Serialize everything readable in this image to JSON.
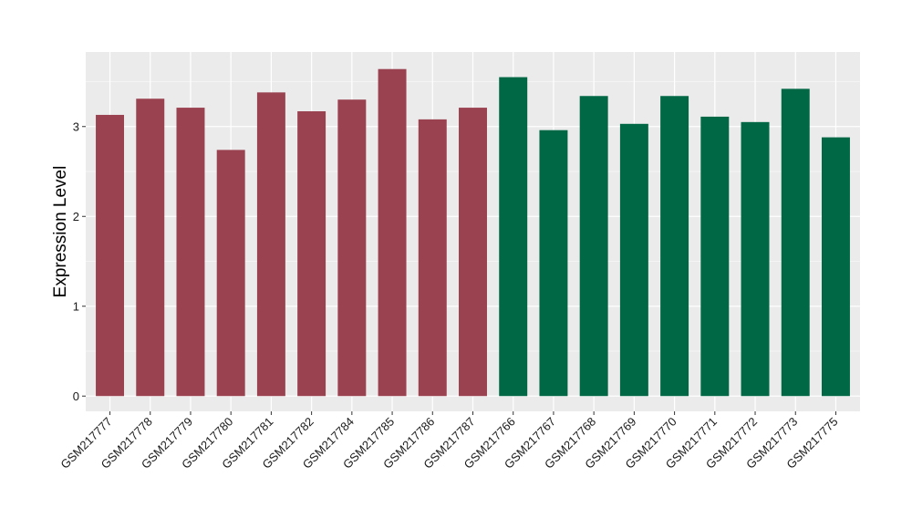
{
  "chart_data": {
    "type": "bar",
    "title": "",
    "xlabel": "",
    "ylabel": "Expression Level",
    "ylim": [
      -0.17,
      3.83
    ],
    "yticks": [
      0,
      1,
      2,
      3
    ],
    "grid": true,
    "legend": "none",
    "colors": {
      "group_a": "#9a4250",
      "group_b": "#006845",
      "panel_bg": "#ebebeb",
      "grid_major": "#ffffff",
      "grid_minor": "#f4f4f4"
    },
    "categories": [
      "GSM217777",
      "GSM217778",
      "GSM217779",
      "GSM217780",
      "GSM217781",
      "GSM217782",
      "GSM217784",
      "GSM217785",
      "GSM217786",
      "GSM217787",
      "GSM217766",
      "GSM217767",
      "GSM217768",
      "GSM217769",
      "GSM217770",
      "GSM217771",
      "GSM217772",
      "GSM217773",
      "GSM217775"
    ],
    "values": [
      3.13,
      3.31,
      3.21,
      2.74,
      3.38,
      3.17,
      3.3,
      3.64,
      3.08,
      3.21,
      3.55,
      2.96,
      3.34,
      3.03,
      3.34,
      3.11,
      3.05,
      3.42,
      2.88
    ],
    "bar_colors": [
      "#9a4250",
      "#9a4250",
      "#9a4250",
      "#9a4250",
      "#9a4250",
      "#9a4250",
      "#9a4250",
      "#9a4250",
      "#9a4250",
      "#9a4250",
      "#006845",
      "#006845",
      "#006845",
      "#006845",
      "#006845",
      "#006845",
      "#006845",
      "#006845",
      "#006845"
    ]
  }
}
